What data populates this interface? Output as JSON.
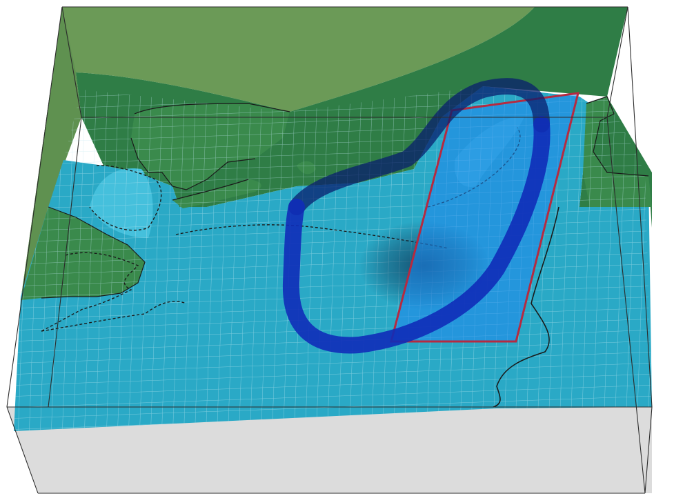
{
  "colors": {
    "background": "#ffffff",
    "box_floor": "#dcdcdc",
    "upper_land": "#6b9a57",
    "land": "#3a8a4c",
    "land_dark": "#2e7342",
    "water": "#2aa9c6",
    "shallow_water": "#45c0dc",
    "grid_line": "#bfe7f0",
    "coast_line": "#1a1a1a",
    "frame_line": "#2b2b2b",
    "ring": "#0f2cb8",
    "ring_shadow": "#0a1f6e",
    "region_fill": "#1f86ee",
    "region_outline": "#b52a40",
    "shadow": "#0d3355"
  },
  "scene": {
    "description_layers": [
      "bounding-box",
      "upper-land-surface",
      "ocean-surface",
      "land-masses",
      "grid-overlay",
      "dashed-contours",
      "loop-path",
      "highlight-region"
    ]
  }
}
